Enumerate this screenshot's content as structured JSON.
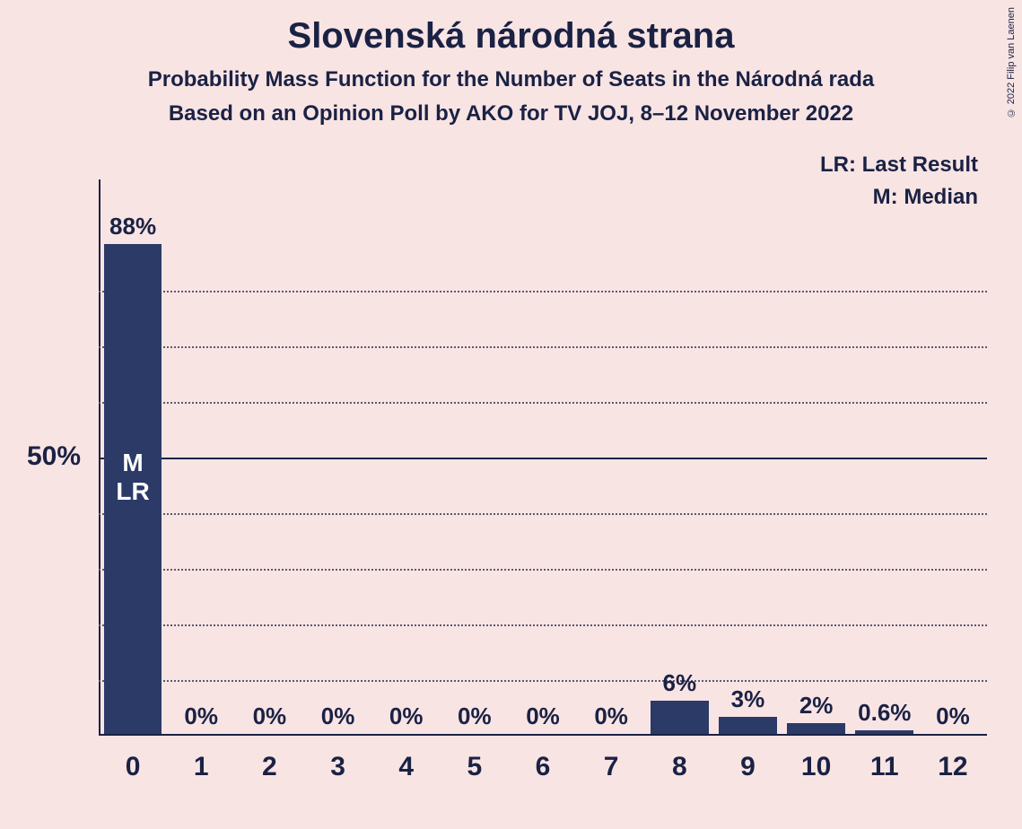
{
  "chart": {
    "type": "bar",
    "title": "Slovenská národná strana",
    "subtitle1": "Probability Mass Function for the Number of Seats in the Národná rada",
    "subtitle2": "Based on an Opinion Poll by AKO for TV JOJ, 8–12 November 2022",
    "background_color": "#f9e4e4",
    "text_color": "#1a2244",
    "bar_color": "#2b3a67",
    "grid_color": "#5a5a6a",
    "axis_color": "#1a2244",
    "ylim": [
      0,
      100
    ],
    "y_reference_line": 50,
    "y_reference_label": "50%",
    "gridlines_at": [
      10,
      20,
      30,
      40,
      60,
      70,
      80
    ],
    "categories": [
      "0",
      "1",
      "2",
      "3",
      "4",
      "5",
      "6",
      "7",
      "8",
      "9",
      "10",
      "11",
      "12"
    ],
    "values": [
      88,
      0,
      0,
      0,
      0,
      0,
      0,
      0,
      6,
      3,
      2,
      0.6,
      0
    ],
    "value_labels": [
      "88%",
      "0%",
      "0%",
      "0%",
      "0%",
      "0%",
      "0%",
      "0%",
      "6%",
      "3%",
      "2%",
      "0.6%",
      "0%"
    ],
    "bar_width_ratio": 0.85,
    "markers": {
      "median_index": 0,
      "last_result_index": 0,
      "median_label": "M",
      "last_result_label": "LR"
    },
    "legend": {
      "lr": "LR: Last Result",
      "m": "M: Median"
    },
    "copyright": "© 2022 Filip van Laenen",
    "title_fontsize": 40,
    "subtitle_fontsize": 24,
    "axis_label_fontsize": 30,
    "value_label_fontsize": 26,
    "legend_fontsize": 24
  }
}
